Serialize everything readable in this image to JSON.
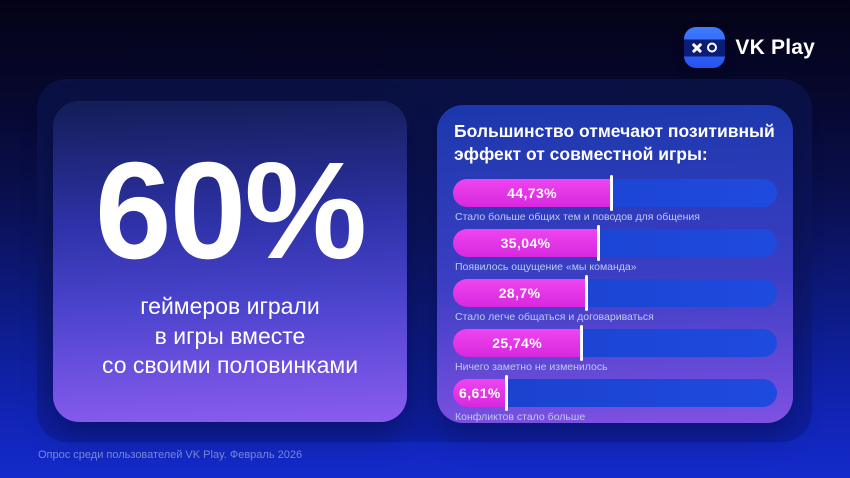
{
  "brand": {
    "label": "VK Play"
  },
  "stat_card": {
    "value": "60%",
    "lines": [
      "геймеров играли",
      "в игры вместе",
      "со своими половинками"
    ]
  },
  "chart_card": {
    "title": "Большинство отмечают позитивный эффект от совместной игры:"
  },
  "chart_data": {
    "type": "bar",
    "orientation": "horizontal",
    "title": "Большинство отмечают позитивный эффект от совместной игры:",
    "value_unit": "%",
    "items": [
      {
        "label": "Стало больше общих тем и поводов для общения",
        "value": 44.73,
        "value_label": "44,73%",
        "fill_fraction": 0.488
      },
      {
        "label": "Появилось ощущение «мы команда»",
        "value": 35.04,
        "value_label": "35,04%",
        "fill_fraction": 0.448
      },
      {
        "label": "Стало легче общаться и договариваться",
        "value": 28.7,
        "value_label": "28,7%",
        "fill_fraction": 0.411
      },
      {
        "label": "Ничего заметно не изменилось",
        "value": 25.74,
        "value_label": "25,74%",
        "fill_fraction": 0.396
      },
      {
        "label": "Конфликтов стало больше",
        "value": 6.61,
        "value_label": "6,61%",
        "fill_fraction": 0.166
      }
    ],
    "colors": {
      "fill": "#E335E5",
      "track": "#1C44D6",
      "marker": "#FFFFFF",
      "caption": "#BFC9F3"
    },
    "legend": "none",
    "grid": "off"
  },
  "footer": {
    "text": "Опрос среди пользователей VK Play. Февраль 2026"
  }
}
